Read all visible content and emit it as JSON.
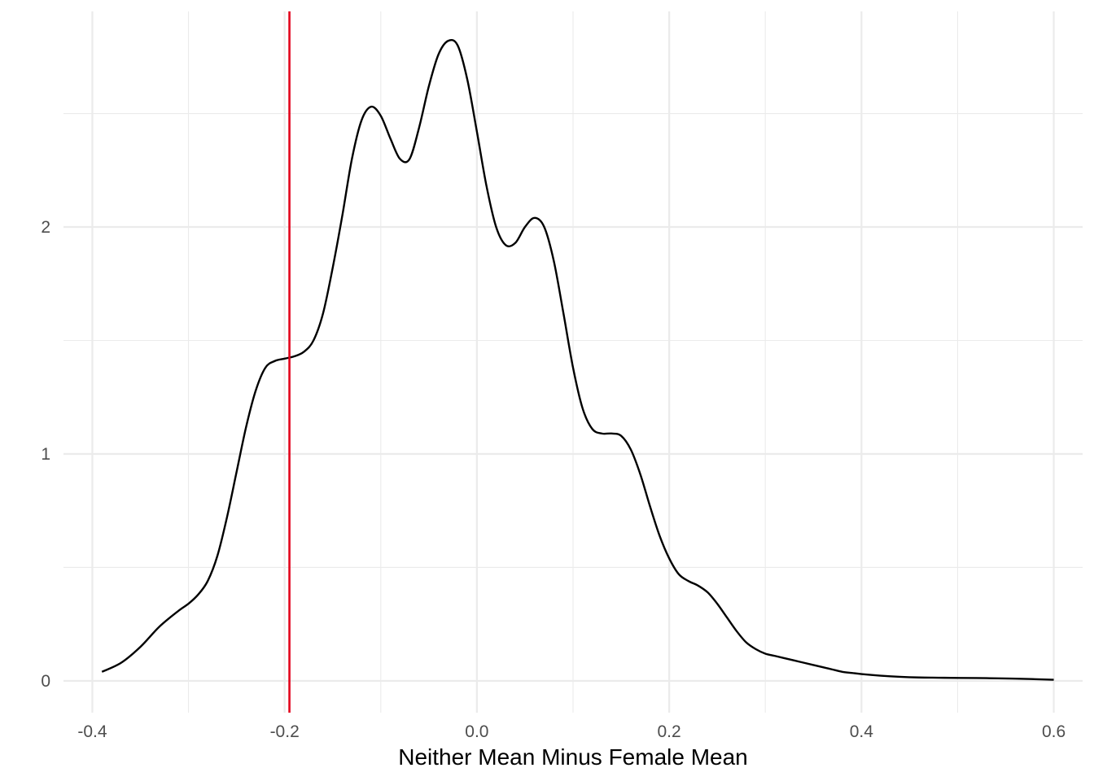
{
  "chart_data": {
    "type": "line",
    "title": "",
    "xlabel": "Neither Mean Minus Female Mean",
    "ylabel": "",
    "xlim": [
      -0.43,
      0.63
    ],
    "ylim": [
      -0.14,
      2.95
    ],
    "x_ticks": [
      -0.4,
      -0.2,
      0.0,
      0.2,
      0.4,
      0.6
    ],
    "x_tick_labels": [
      "-0.4",
      "-0.2",
      "0.0",
      "0.2",
      "0.4",
      "0.6"
    ],
    "y_ticks": [
      0,
      1,
      2
    ],
    "y_tick_labels": [
      "0",
      "1",
      "2"
    ],
    "x_minor_ticks": [
      -0.3,
      -0.1,
      0.1,
      0.3,
      0.5
    ],
    "y_minor_ticks": [
      0.5,
      1.5,
      2.5
    ],
    "grid": true,
    "colors": {
      "curve": "#000000",
      "reference_line": "#e3001b",
      "grid": "#ebebeb"
    },
    "series": [
      {
        "x": [
          -0.39,
          -0.37,
          -0.35,
          -0.33,
          -0.31,
          -0.3,
          -0.29,
          -0.28,
          -0.27,
          -0.26,
          -0.25,
          -0.24,
          -0.23,
          -0.22,
          -0.21,
          -0.2,
          -0.19,
          -0.18,
          -0.17,
          -0.16,
          -0.15,
          -0.14,
          -0.13,
          -0.12,
          -0.11,
          -0.1,
          -0.09,
          -0.08,
          -0.07,
          -0.06,
          -0.05,
          -0.04,
          -0.03,
          -0.02,
          -0.01,
          0.0,
          0.01,
          0.02,
          0.03,
          0.04,
          0.05,
          0.06,
          0.07,
          0.08,
          0.09,
          0.1,
          0.11,
          0.12,
          0.13,
          0.14,
          0.15,
          0.16,
          0.17,
          0.18,
          0.19,
          0.2,
          0.21,
          0.22,
          0.23,
          0.24,
          0.25,
          0.26,
          0.27,
          0.28,
          0.29,
          0.3,
          0.31,
          0.32,
          0.33,
          0.34,
          0.35,
          0.36,
          0.37,
          0.38,
          0.39,
          0.4,
          0.42,
          0.44,
          0.46,
          0.48,
          0.5,
          0.53,
          0.56,
          0.6
        ],
        "y": [
          0.04,
          0.08,
          0.15,
          0.24,
          0.31,
          0.34,
          0.38,
          0.44,
          0.55,
          0.72,
          0.92,
          1.12,
          1.28,
          1.38,
          1.41,
          1.42,
          1.43,
          1.45,
          1.5,
          1.62,
          1.82,
          2.05,
          2.3,
          2.47,
          2.53,
          2.49,
          2.39,
          2.3,
          2.3,
          2.44,
          2.62,
          2.76,
          2.82,
          2.8,
          2.65,
          2.42,
          2.18,
          2.0,
          1.92,
          1.93,
          2.0,
          2.04,
          2.0,
          1.85,
          1.62,
          1.38,
          1.2,
          1.11,
          1.09,
          1.09,
          1.08,
          1.02,
          0.91,
          0.77,
          0.64,
          0.54,
          0.47,
          0.44,
          0.42,
          0.39,
          0.34,
          0.28,
          0.22,
          0.17,
          0.14,
          0.12,
          0.11,
          0.1,
          0.09,
          0.08,
          0.07,
          0.06,
          0.05,
          0.04,
          0.035,
          0.03,
          0.023,
          0.018,
          0.015,
          0.014,
          0.013,
          0.012,
          0.01,
          0.005
        ]
      }
    ],
    "vline_x": -0.195
  }
}
